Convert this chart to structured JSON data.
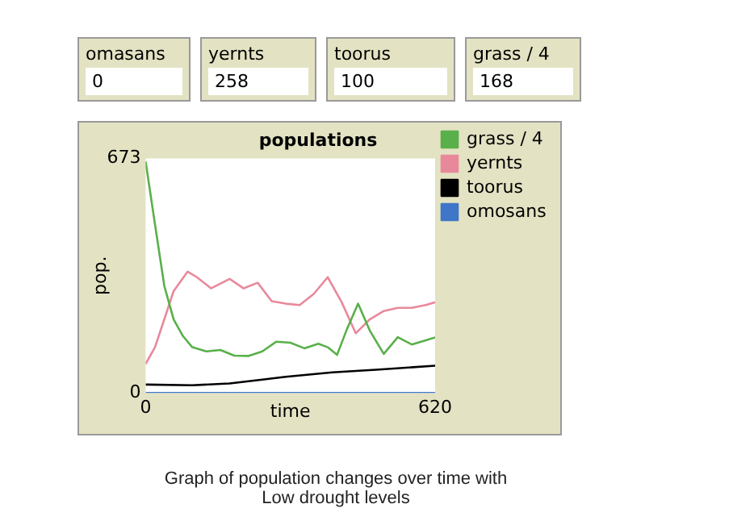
{
  "chart_data": [
    {
      "type": "other",
      "categories": [
        "omasans",
        "yernts",
        "toorus",
        "grass / 4"
      ],
      "values": [
        0,
        258,
        100,
        168
      ],
      "data_labels": true
    },
    {
      "type": "line",
      "title": "populations",
      "xlabel": "time",
      "ylabel": "pop.",
      "xlim": [
        0,
        620
      ],
      "xticks": [
        0,
        620
      ],
      "ylim": [
        0,
        673
      ],
      "yticks": [
        0,
        673
      ],
      "grid": false,
      "legend": "right",
      "marker": "none",
      "annotations": [
        "Graph of population changes over time with\nLow drought levels"
      ],
      "series": [
        {
          "name": "grass / 4",
          "color": "#59b04a",
          "x": [
            0,
            20,
            40,
            60,
            80,
            100,
            130,
            160,
            190,
            220,
            250,
            280,
            310,
            340,
            370,
            390,
            410,
            430,
            455,
            480,
            510,
            540,
            570,
            600,
            620
          ],
          "values": [
            664,
            484,
            307,
            211,
            163,
            131,
            119,
            123,
            107,
            106,
            119,
            147,
            144,
            128,
            141,
            131,
            109,
            179,
            256,
            179,
            112,
            160,
            139,
            151,
            159
          ]
        },
        {
          "name": "yernts",
          "color": "#e8899b",
          "x": [
            0,
            20,
            40,
            60,
            90,
            110,
            140,
            180,
            210,
            240,
            270,
            300,
            330,
            360,
            390,
            420,
            450,
            480,
            510,
            540,
            570,
            600,
            620
          ],
          "values": [
            83,
            131,
            211,
            292,
            348,
            332,
            300,
            327,
            300,
            316,
            263,
            256,
            252,
            284,
            332,
            260,
            171,
            211,
            235,
            244,
            244,
            252,
            260
          ]
        },
        {
          "name": "toorus",
          "color": "#000000",
          "x": [
            0,
            100,
            180,
            250,
            300,
            400,
            500,
            620
          ],
          "values": [
            24,
            22,
            27,
            38,
            46,
            59,
            67,
            78
          ]
        },
        {
          "name": "omosans",
          "color": "#3f76c8",
          "x": [
            0,
            620
          ],
          "values": [
            0,
            0
          ]
        }
      ]
    }
  ]
}
